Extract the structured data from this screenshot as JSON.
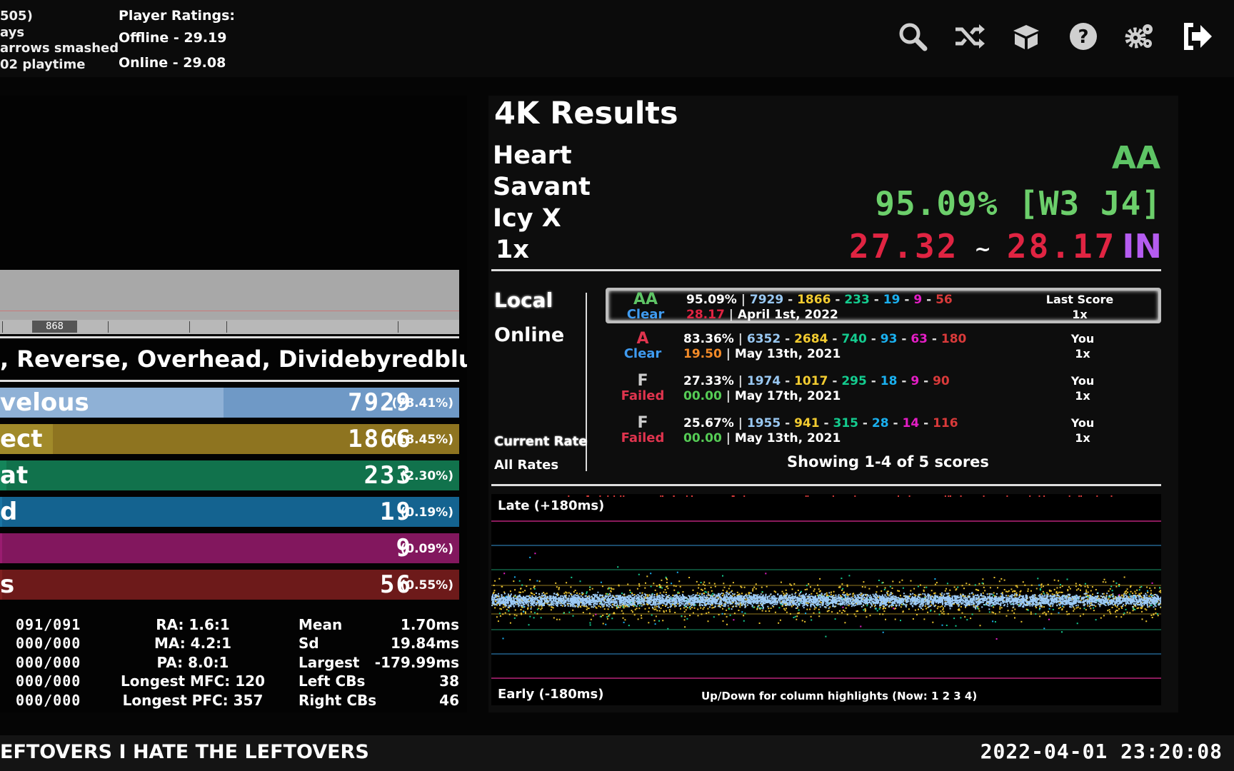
{
  "profile": {
    "lines": [
      "505)",
      "ays",
      "arrows smashed",
      "02 playtime"
    ]
  },
  "ratings": {
    "title": "Player Ratings:",
    "offline": "Offline - 29.19",
    "online": "Online - 29.08"
  },
  "icons": [
    "search-icon",
    "shuffle-icon",
    "package-icon",
    "help-icon",
    "settings-icon",
    "exit-icon"
  ],
  "graph": {
    "label": "868"
  },
  "mods": ", Reverse, Overhead, Dividebyredblue",
  "judgments": [
    {
      "name": "velous",
      "count": "7929",
      "pct": "(78.41%)",
      "fraction": 0.7841,
      "color": "#6f99c6",
      "fill": "#8fb1d6"
    },
    {
      "name": "ect",
      "count": "1866",
      "pct": "(18.45%)",
      "fraction": 0.1845,
      "color": "#8e7420",
      "fill": "#a18a2a"
    },
    {
      "name": "at",
      "count": "233",
      "pct": "(2.30%)",
      "fraction": 0.023,
      "color": "#11724c",
      "fill": "#14855a"
    },
    {
      "name": "d",
      "count": "19",
      "pct": "(0.19%)",
      "fraction": 0.0019,
      "color": "#146390",
      "fill": "#1a74a3"
    },
    {
      "name": "",
      "count": "9",
      "pct": "(0.09%)",
      "fraction": 0.0009,
      "color": "#82175e",
      "fill": "#9a1c70"
    },
    {
      "name": "s",
      "count": "56",
      "pct": "(0.55%)",
      "fraction": 0.0055,
      "color": "#6d1a1a",
      "fill": "#7f2020"
    }
  ],
  "stats": {
    "holds": [
      "091/091",
      "000/000",
      "000/000",
      "000/000",
      "000/000"
    ],
    "ratios": [
      "RA: 1.6:1",
      "MA: 4.2:1",
      "PA: 8.0:1",
      "Longest MFC: 120",
      "Longest PFC: 357"
    ],
    "offset_labels": [
      "Mean",
      "Sd",
      "Largest",
      "Left CBs",
      "Right CBs"
    ],
    "offset_values": [
      "1.70ms",
      "19.84ms",
      "-179.99ms",
      "38",
      "46"
    ]
  },
  "results": {
    "title": "4K Results",
    "song": [
      "Heart",
      "Savant",
      "Icy X",
      "1x"
    ],
    "grade": "AA",
    "accuracy": "95.09% [W3 J4]",
    "msd_low": "27.32",
    "tilde": "~",
    "msd_high": "28.17",
    "difficulty": "IN"
  },
  "scopes": {
    "local": "Local",
    "online": "Online",
    "current_rate": "Current Rate",
    "all_rates": "All Rates"
  },
  "scores": [
    {
      "grade": "AA",
      "grade_color": "#5ec465",
      "clear": "Clear",
      "clear_color": "#3f9bf0",
      "pct": "95.09%",
      "w1": "7929",
      "w2": "1866",
      "w3": "233",
      "w4": "19",
      "w5": "9",
      "miss": "56",
      "msd": "28.17",
      "msd_color": "#e02442",
      "date": "April 1st, 2022",
      "who": "Last Score",
      "rate": "1x",
      "selected": true
    },
    {
      "grade": "A",
      "grade_color": "#e0344e",
      "clear": "Clear",
      "clear_color": "#3f9bf0",
      "pct": "83.36%",
      "w1": "6352",
      "w2": "2684",
      "w3": "740",
      "w4": "93",
      "w5": "63",
      "miss": "180",
      "msd": "19.50",
      "msd_color": "#f28a28",
      "date": "May 13th, 2021",
      "who": "You",
      "rate": "1x",
      "selected": false
    },
    {
      "grade": "F",
      "grade_color": "#cccccc",
      "clear": "Failed",
      "clear_color": "#e0344e",
      "pct": "27.33%",
      "w1": "1974",
      "w2": "1017",
      "w3": "295",
      "w4": "18",
      "w5": "9",
      "miss": "90",
      "msd": "00.00",
      "msd_color": "#55cc55",
      "date": "May 17th, 2021",
      "who": "You",
      "rate": "1x",
      "selected": false
    },
    {
      "grade": "F",
      "grade_color": "#cccccc",
      "clear": "Failed",
      "clear_color": "#e0344e",
      "pct": "25.67%",
      "w1": "1955",
      "w2": "941",
      "w3": "315",
      "w4": "28",
      "w5": "14",
      "miss": "116",
      "msd": "00.00",
      "msd_color": "#55cc55",
      "date": "May 13th, 2021",
      "who": "You",
      "rate": "1x",
      "selected": false
    }
  ],
  "showing": "Showing 1-4 of 5 scores",
  "offset_plot": {
    "late_label": "Late (+180ms)",
    "early_label": "Early (-180ms)",
    "hint": "Up/Down for column highlights (Now: 1 2 3 4)",
    "colors": {
      "w1": "#9ccaf5",
      "w2": "#e8c230",
      "w3": "#14cc8f",
      "w4": "#1ab0ef",
      "w5": "#e41ec5",
      "miss": "#d93a3a"
    }
  },
  "footer": {
    "marquee": "EFTOVERS I HATE THE LEFTOVERS",
    "clock": "2022-04-01 23:20:08"
  }
}
